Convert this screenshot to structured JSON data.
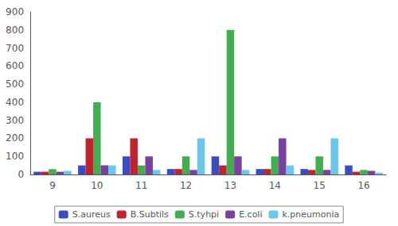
{
  "chart_data": {
    "type": "bar",
    "categories": [
      "9",
      "10",
      "11",
      "12",
      "13",
      "14",
      "15",
      "16"
    ],
    "series": [
      {
        "name": "S.aureus",
        "color": "#3b4cc0",
        "values": [
          15,
          50,
          100,
          30,
          100,
          30,
          30,
          50
        ]
      },
      {
        "name": "B.Subtils",
        "color": "#c0222e",
        "values": [
          15,
          200,
          200,
          30,
          50,
          30,
          25,
          15
        ]
      },
      {
        "name": "S.tyhpi",
        "color": "#3faf4f",
        "values": [
          30,
          400,
          50,
          100,
          800,
          100,
          100,
          25
        ]
      },
      {
        "name": "E.coli",
        "color": "#7b3f9e",
        "values": [
          15,
          50,
          100,
          25,
          100,
          200,
          25,
          20
        ]
      },
      {
        "name": "k.pneumonia",
        "color": "#6ec6e8",
        "values": [
          20,
          50,
          25,
          200,
          25,
          50,
          200,
          10
        ]
      }
    ],
    "ylim": [
      0,
      900
    ],
    "yticks": [
      0,
      100,
      200,
      300,
      400,
      500,
      600,
      700,
      800,
      900
    ],
    "grid": false,
    "legend": "bottom"
  }
}
